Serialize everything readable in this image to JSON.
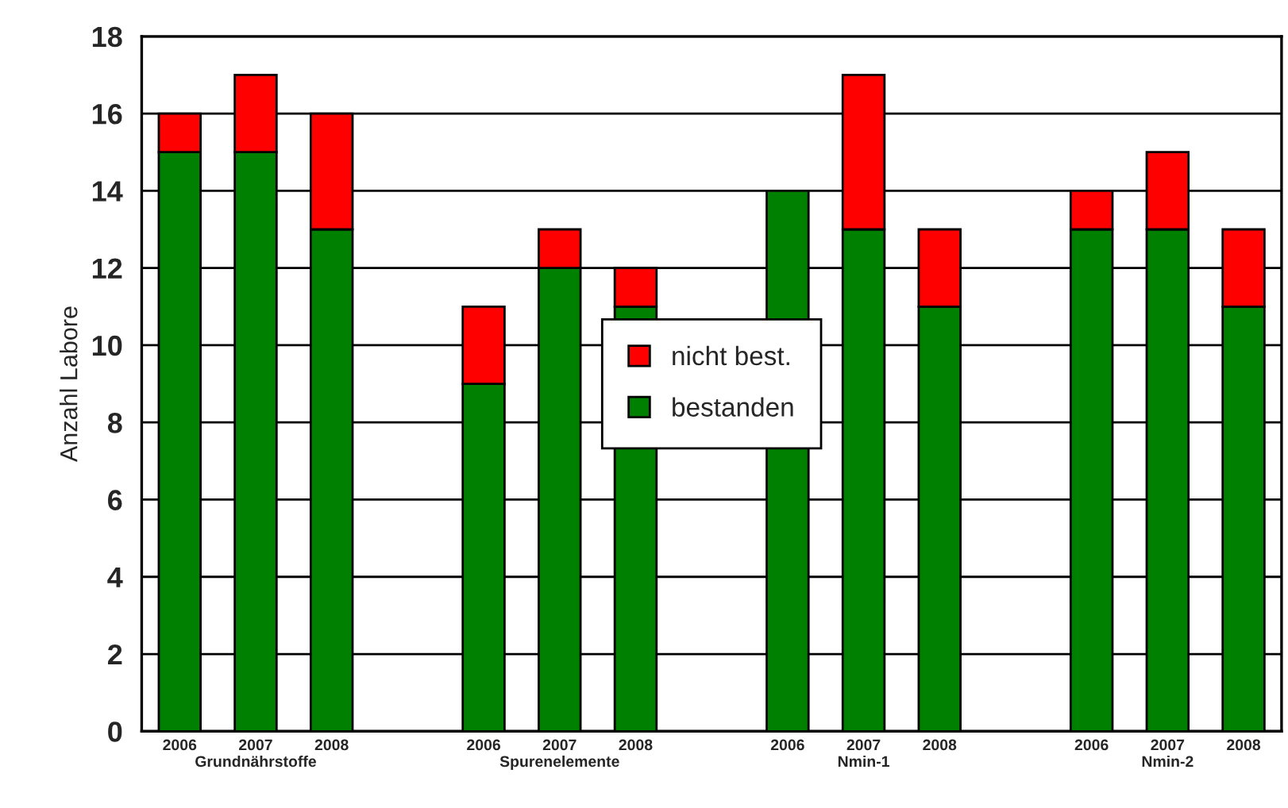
{
  "chart_data": {
    "type": "bar",
    "stacked": true,
    "ylabel": "Anzahl Labore",
    "categories": [
      "2006",
      "2007\nGrundnährstoffe",
      "2008",
      null,
      "2006",
      "2007\nSpurenelemente",
      "2008",
      null,
      "2006",
      "2007\nNmin-1",
      "2008",
      null,
      "2006",
      "2007\nNmin-2",
      "2008"
    ],
    "series": [
      {
        "name": "bestanden",
        "color": "#008000",
        "values": [
          15,
          15,
          13,
          null,
          9,
          12,
          11,
          null,
          14,
          13,
          11,
          null,
          13,
          13,
          11
        ]
      },
      {
        "name": "nicht best.",
        "color": "#ff0000",
        "values": [
          1,
          2,
          3,
          null,
          2,
          1,
          1,
          null,
          null,
          4,
          2,
          null,
          1,
          2,
          2
        ]
      }
    ],
    "ylim": [
      0,
      18
    ],
    "yticks": [
      0,
      2,
      4,
      6,
      8,
      10,
      12,
      14,
      16,
      18
    ],
    "grid": "y",
    "legend": "center"
  }
}
